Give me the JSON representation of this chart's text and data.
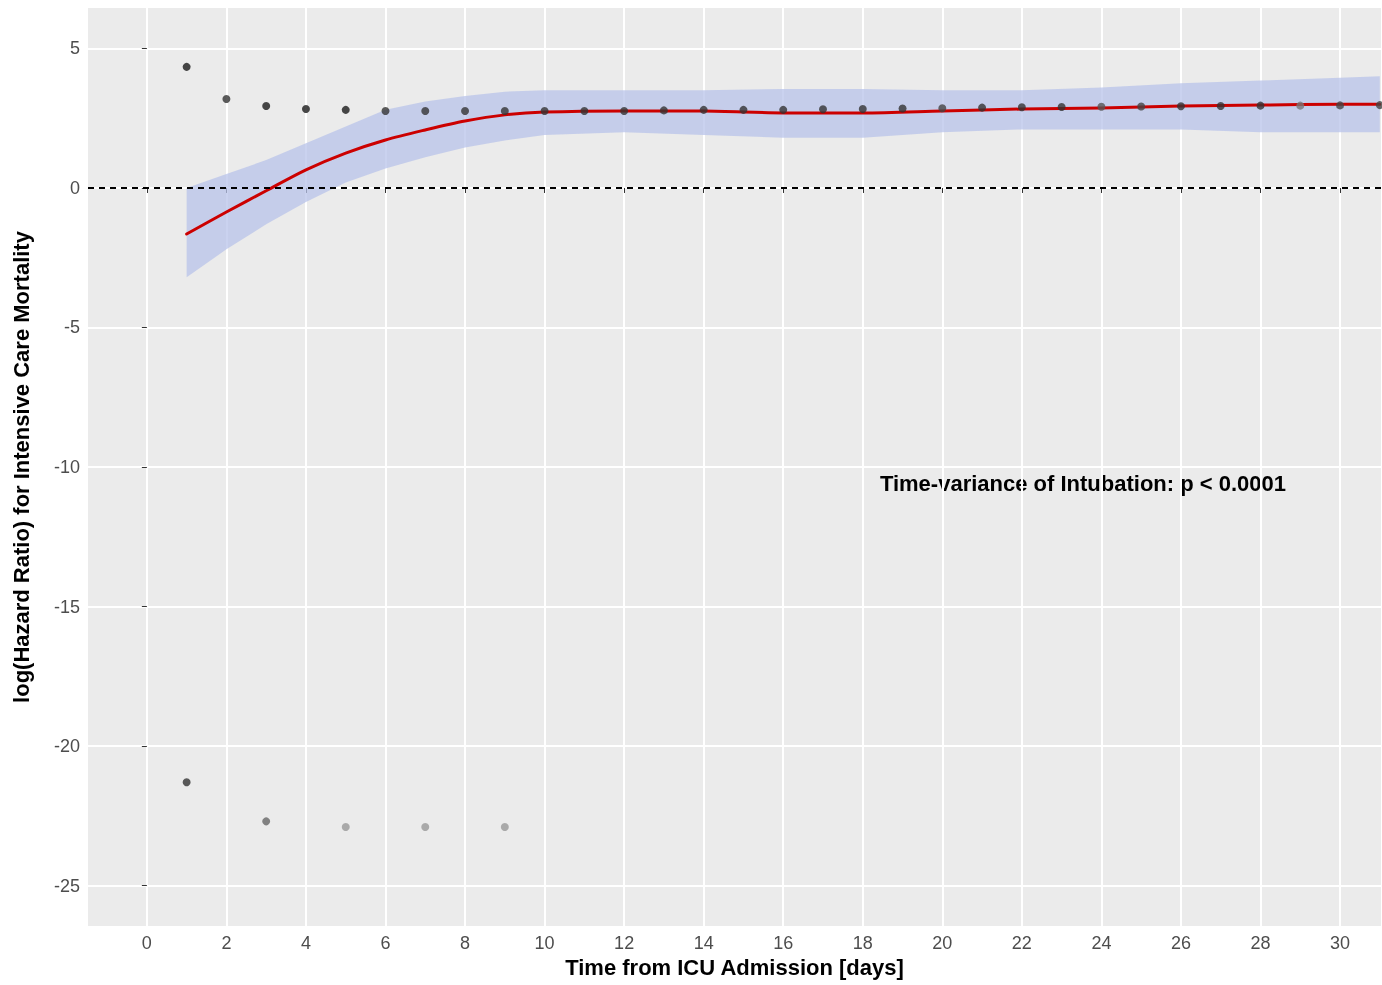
{
  "chart_data": {
    "type": "scatter",
    "xlabel": "Time from ICU Admission [days]",
    "ylabel": "log(Hazard Ratio) for Intensive Care Mortality",
    "xlim": [
      -1.48,
      31.03
    ],
    "ylim": [
      -26.45,
      6.45
    ],
    "xticks": [
      0,
      2,
      4,
      6,
      8,
      10,
      12,
      14,
      16,
      18,
      20,
      22,
      24,
      26,
      28,
      30
    ],
    "yticks": [
      -25,
      -20,
      -15,
      -10,
      -5,
      0,
      5
    ],
    "grid": true,
    "series": [
      {
        "marker": "circle",
        "x": [
          1,
          2,
          3,
          4,
          5,
          6,
          7,
          8,
          9,
          10,
          11,
          12,
          13,
          14,
          15,
          16,
          17,
          18,
          19,
          20,
          21,
          22,
          23,
          24,
          25,
          26,
          27,
          28,
          29,
          30,
          31,
          1,
          3,
          5,
          7,
          9
        ],
        "values": [
          4.34,
          3.19,
          2.94,
          2.83,
          2.8,
          2.76,
          2.76,
          2.76,
          2.76,
          2.76,
          2.76,
          2.76,
          2.78,
          2.8,
          2.8,
          2.8,
          2.82,
          2.83,
          2.85,
          2.86,
          2.88,
          2.89,
          2.9,
          2.91,
          2.92,
          2.93,
          2.94,
          2.95,
          2.95,
          2.96,
          2.97,
          -21.3,
          -22.7,
          -22.9,
          -22.9,
          -22.9
        ],
        "colors": [
          "#1a1a1a",
          "#333333",
          "#1a1a1a",
          "#1a1a1a",
          "#1a1a1a",
          "#333333",
          "#333333",
          "#333333",
          "#333333",
          "#333333",
          "#333333",
          "#333333",
          "#333333",
          "#333333",
          "#333333",
          "#333333",
          "#333333",
          "#333333",
          "#333333",
          "#444444",
          "#333333",
          "#333333",
          "#333333",
          "#555555",
          "#444444",
          "#333333",
          "#333333",
          "#333333",
          "#777777",
          "#444444",
          "#444444",
          "#333333",
          "#666666",
          "#999999",
          "#999999",
          "#999999"
        ]
      },
      {
        "type": "line",
        "color": "#cc0000",
        "line_style": "solid",
        "marker": "none",
        "x": [
          1,
          2,
          3,
          4,
          5,
          6,
          7,
          8,
          9,
          10,
          12,
          14,
          16,
          18,
          20,
          22,
          24,
          26,
          28,
          30,
          31
        ],
        "values": [
          -1.65,
          -0.86,
          -0.1,
          0.65,
          1.25,
          1.72,
          2.08,
          2.4,
          2.62,
          2.72,
          2.76,
          2.76,
          2.69,
          2.69,
          2.76,
          2.83,
          2.87,
          2.94,
          2.97,
          3.0,
          3.0
        ],
        "lower": [
          -3.2,
          -2.2,
          -1.3,
          -0.5,
          0.2,
          0.7,
          1.1,
          1.45,
          1.7,
          1.9,
          2.0,
          1.9,
          1.8,
          1.8,
          2.0,
          2.1,
          2.1,
          2.1,
          2.0,
          2.0,
          2.0
        ],
        "upper": [
          0,
          0.5,
          1.0,
          1.6,
          2.2,
          2.8,
          3.1,
          3.3,
          3.45,
          3.5,
          3.5,
          3.5,
          3.55,
          3.55,
          3.5,
          3.5,
          3.6,
          3.75,
          3.85,
          3.95,
          4.0
        ]
      }
    ],
    "ref_lines": [
      {
        "axis": "y",
        "value": 0,
        "color": "#000000",
        "line_style": "dashed"
      }
    ],
    "annotations": [
      "Time-variance of Intubation: p < 0.0001"
    ]
  }
}
